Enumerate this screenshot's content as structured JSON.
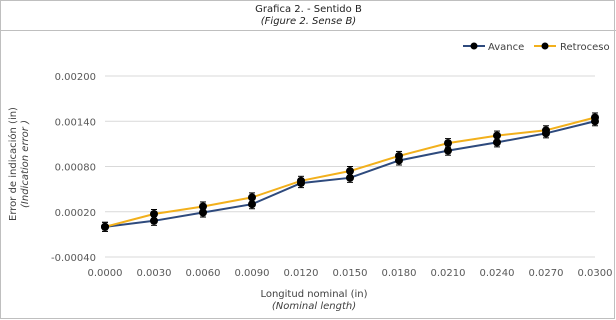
{
  "titles": {
    "main": "Grafica 2. - Sentido B",
    "sub": "(Figure 2. Sense B)"
  },
  "colors": {
    "avance": "#2e4a7d",
    "retroceso": "#f2b01c",
    "marker": "#000000",
    "grid": "#d9d9d9",
    "axis_text": "#595959"
  },
  "chart_data": {
    "type": "line",
    "x": [
      0.0,
      0.003,
      0.006,
      0.009,
      0.012,
      0.015,
      0.018,
      0.021,
      0.024,
      0.027,
      0.03
    ],
    "x_tick_labels": [
      "0.0000",
      "0.0030",
      "0.0060",
      "0.0090",
      "0.0120",
      "0.0150",
      "0.0180",
      "0.0210",
      "0.0240",
      "0.0270",
      "0.0300"
    ],
    "y_ticks": [
      -0.0004,
      0.0002,
      0.0008,
      0.0014,
      0.002
    ],
    "y_tick_labels": [
      "-0.00040",
      "0.00020",
      "0.00080",
      "0.00140",
      "0.00200"
    ],
    "ylim": [
      -0.0004,
      0.002
    ],
    "xlim": [
      0.0,
      0.03
    ],
    "xlabel": "Longitud nominal (in)",
    "xlabel_sub": "(Nominal length)",
    "ylabel": "Error de indicación (in)",
    "ylabel_sub": "(Indication error )",
    "grid": "horizontal",
    "legend_position": "top-right",
    "error_bar": 6e-05,
    "series": [
      {
        "name": "Avance",
        "color": "#2e4a7d",
        "values": [
          0.0,
          8e-05,
          0.00019,
          0.0003,
          0.00058,
          0.00065,
          0.00088,
          0.00101,
          0.00112,
          0.00124,
          0.0014
        ]
      },
      {
        "name": "Retroceso",
        "color": "#f2b01c",
        "values": [
          0.0,
          0.00017,
          0.00027,
          0.00039,
          0.00061,
          0.00074,
          0.00094,
          0.00111,
          0.00121,
          0.00128,
          0.00145
        ]
      }
    ]
  }
}
